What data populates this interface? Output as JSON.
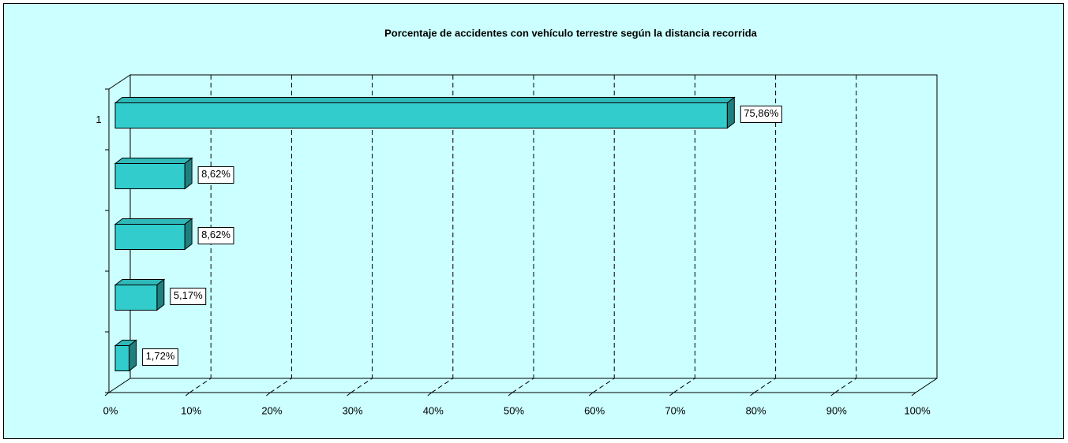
{
  "chart_data": {
    "type": "bar3d_horizontal",
    "title": "Porcentaje de accidentes con vehículo terrestre según la distancia recorrida",
    "categories": [
      "1",
      null,
      null,
      null,
      null
    ],
    "values": [
      75.86,
      8.62,
      8.62,
      5.17,
      1.72
    ],
    "value_labels": [
      "75,86%",
      "8,62%",
      "8,62%",
      "5,17%",
      "1,72%"
    ],
    "color": "#33cccc",
    "xlim": [
      0,
      100
    ],
    "xticks": [
      {
        "value": 0,
        "label": "0%"
      },
      {
        "value": 10,
        "label": "10%"
      },
      {
        "value": 20,
        "label": "20%"
      },
      {
        "value": 30,
        "label": "30%"
      },
      {
        "value": 40,
        "label": "40%"
      },
      {
        "value": 50,
        "label": "50%"
      },
      {
        "value": 60,
        "label": "60%"
      },
      {
        "value": 70,
        "label": "70%"
      },
      {
        "value": 80,
        "label": "80%"
      },
      {
        "value": 90,
        "label": "90%"
      },
      {
        "value": 100,
        "label": "100%"
      }
    ],
    "grid": true
  }
}
